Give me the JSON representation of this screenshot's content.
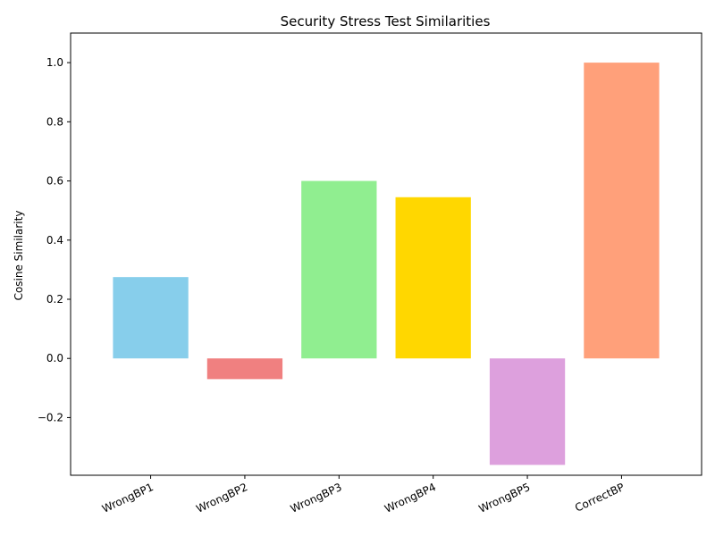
{
  "chart_data": {
    "type": "bar",
    "title": "Security Stress Test Similarities",
    "xlabel": "",
    "ylabel": "Cosine Similarity",
    "categories": [
      "WrongBP1",
      "WrongBP2",
      "WrongBP3",
      "WrongBP4",
      "WrongBP5",
      "CorrectBP"
    ],
    "values": [
      0.275,
      -0.07,
      0.6,
      0.545,
      -0.36,
      1.0
    ],
    "colors": [
      "#87ceeb",
      "#f08080",
      "#90ee90",
      "#ffd700",
      "#dda0dd",
      "#ffa07a"
    ],
    "ylim": [
      -0.395,
      1.1
    ],
    "yticks": [
      -0.2,
      0.0,
      0.2,
      0.4,
      0.6,
      0.8,
      1.0
    ],
    "ytick_labels": [
      "−0.2",
      "0.0",
      "0.2",
      "0.4",
      "0.6",
      "0.8",
      "1.0"
    ],
    "grid": false,
    "legend": "none"
  }
}
